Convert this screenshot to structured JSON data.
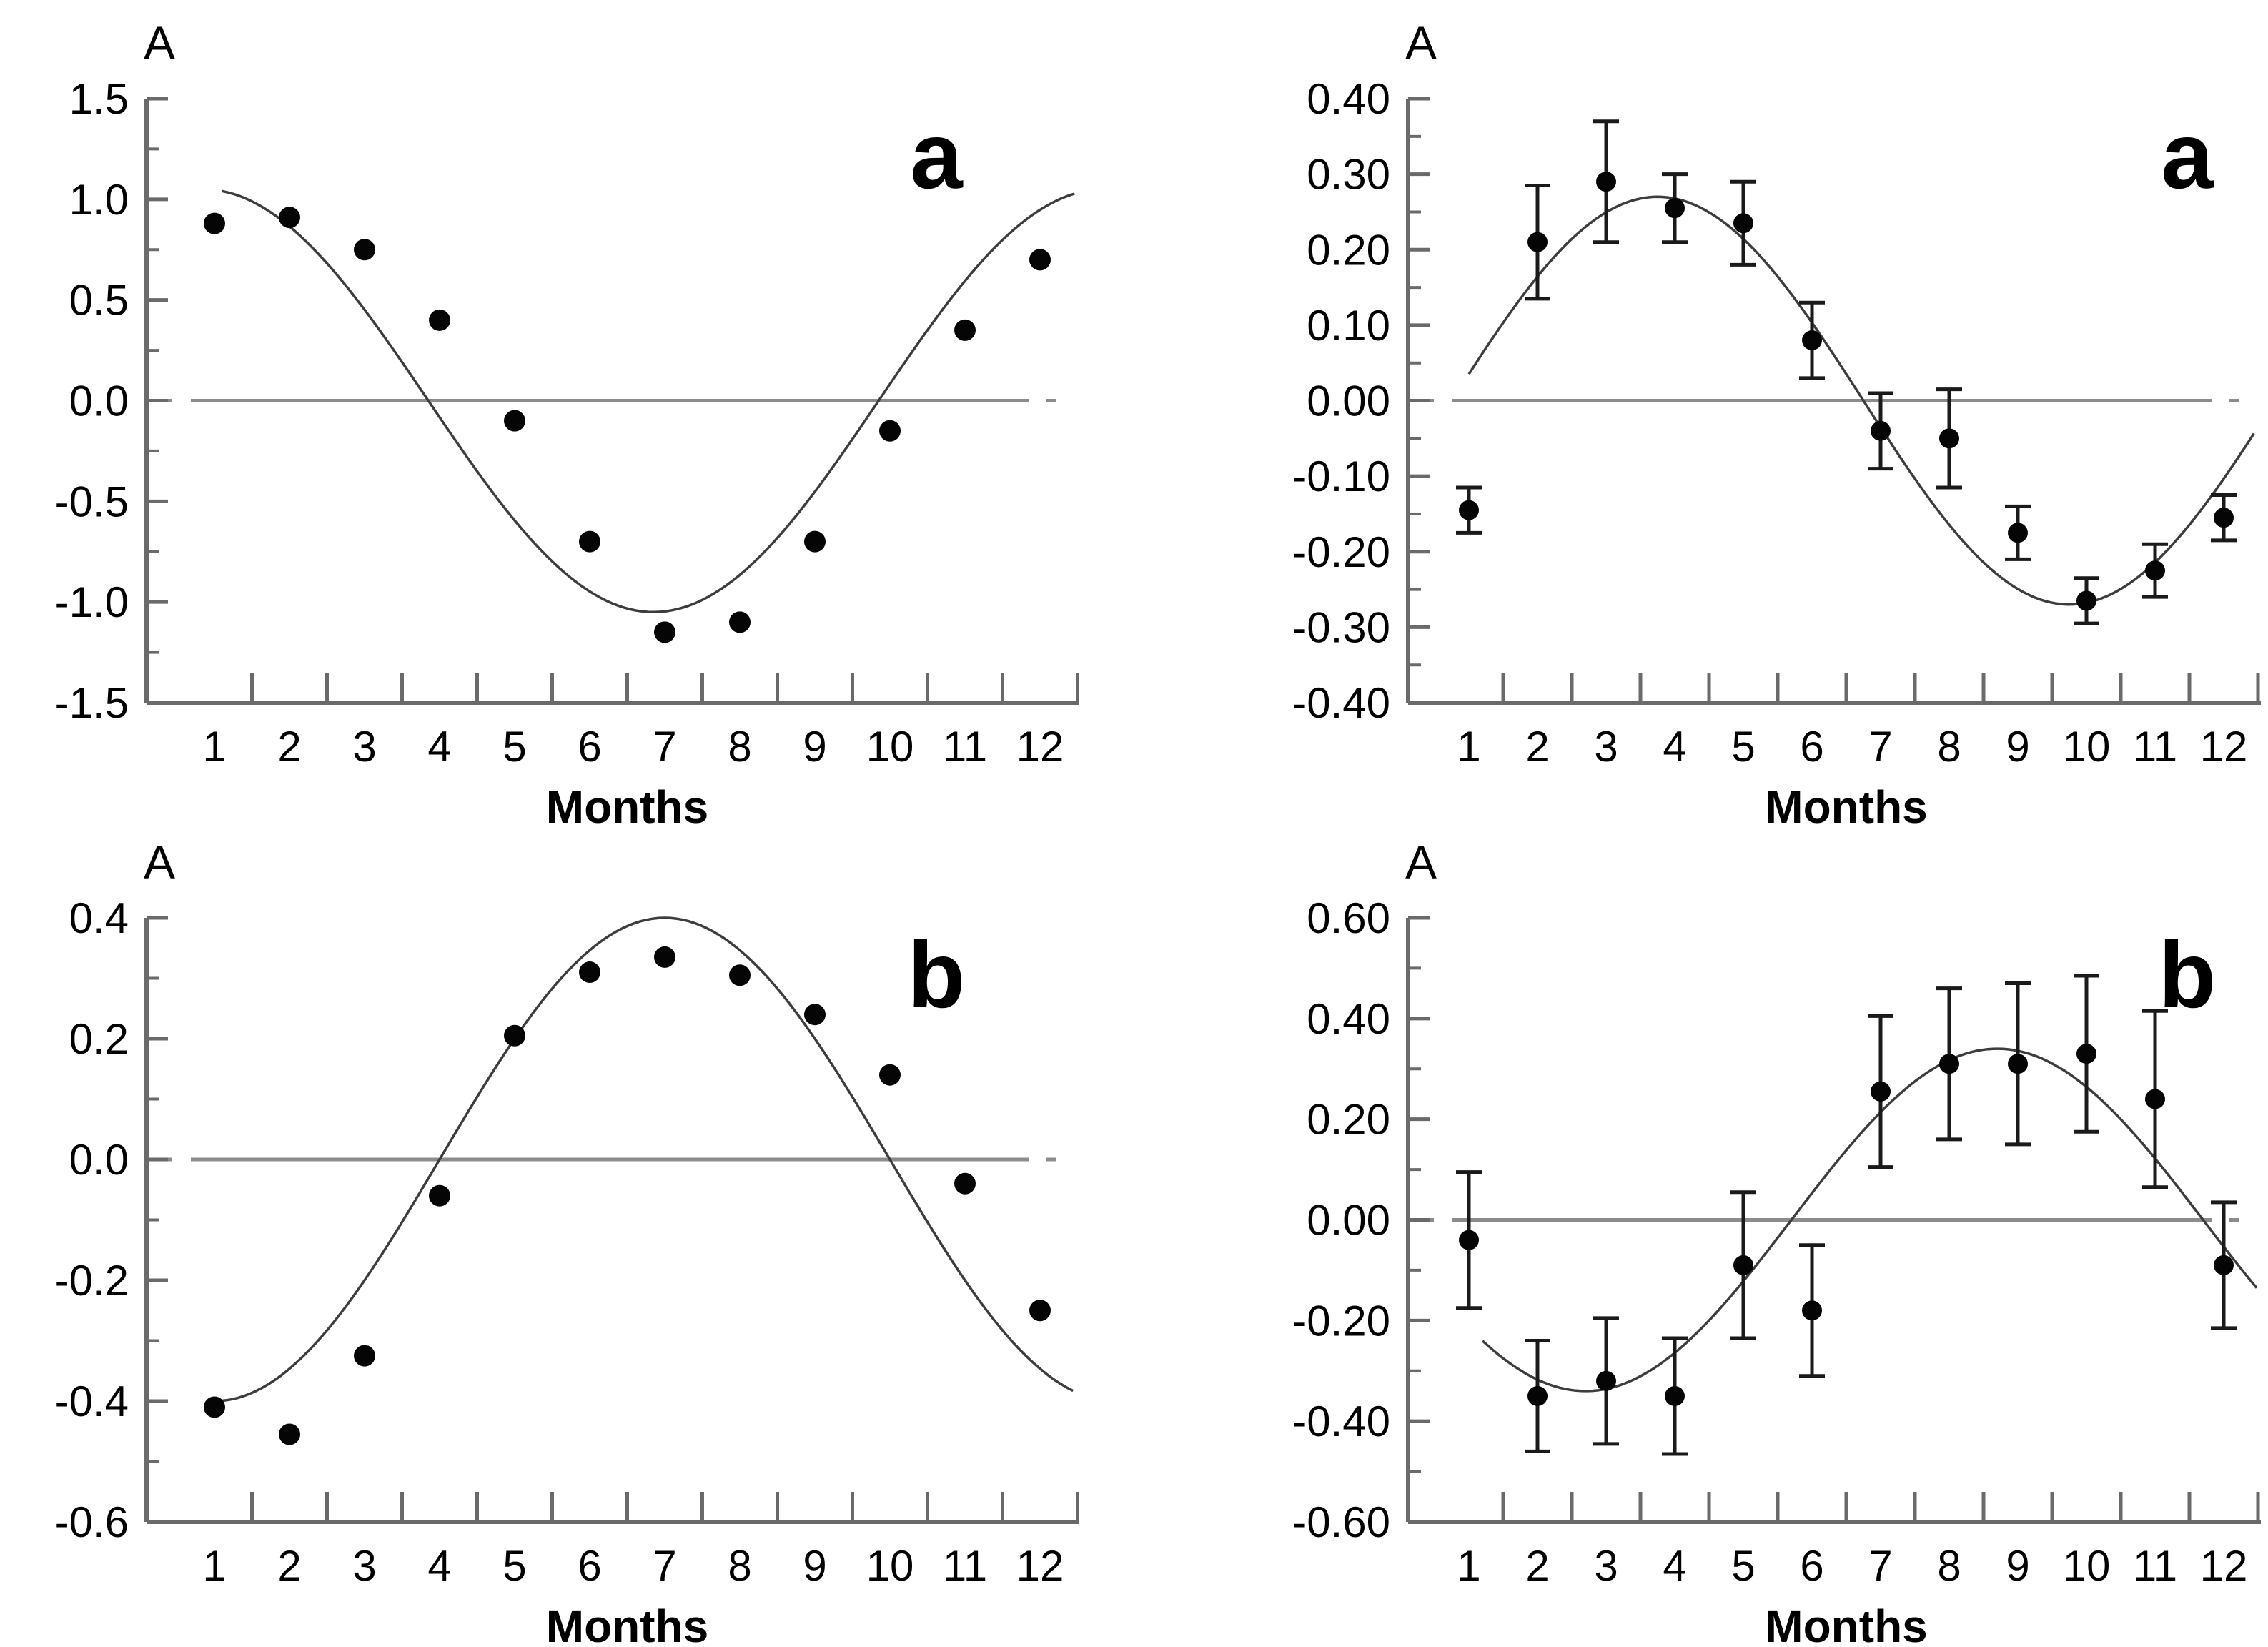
{
  "figure": {
    "background": "#ffffff",
    "colors": {
      "axis": "#6a6a6a",
      "zero_line": "#8c8c8c",
      "curve": "#3d3d3d",
      "point": "#050505",
      "error_bar": "#1a1a1a",
      "text": "#000000"
    }
  },
  "chart_data": [
    {
      "id": "top-left",
      "type": "scatter",
      "panel_label": "a",
      "y_axis_title": "A",
      "x_axis_title": "Months",
      "x_categories": [
        1,
        2,
        3,
        4,
        5,
        6,
        7,
        8,
        9,
        10,
        11,
        12
      ],
      "x_tick_labels": [
        "1",
        "2",
        "3",
        "4",
        "5",
        "6",
        "7",
        "8",
        "9",
        "10",
        "11",
        "12"
      ],
      "values": [
        0.88,
        0.91,
        0.75,
        0.4,
        -0.1,
        -0.7,
        -1.15,
        -1.1,
        -0.7,
        -0.15,
        0.35,
        0.7
      ],
      "errors": null,
      "ylim": [
        -1.5,
        1.5
      ],
      "y_ticks": [
        {
          "v": 1.5,
          "label": "1.5"
        },
        {
          "v": 1.0,
          "label": "1.0"
        },
        {
          "v": 0.5,
          "label": "0.5"
        },
        {
          "v": 0.0,
          "label": "0.0"
        },
        {
          "v": -0.5,
          "label": "-0.5"
        },
        {
          "v": -1.0,
          "label": "-1.0"
        },
        {
          "v": -1.5,
          "label": "-1.5"
        }
      ],
      "zero_line": true,
      "grid": false,
      "fit_curve": {
        "type": "cosine",
        "amplitude": 1.05,
        "peak_month": 0.85,
        "period_months": 12,
        "month_start": 1.1,
        "month_end": 12.5
      }
    },
    {
      "id": "top-right",
      "type": "scatter",
      "panel_label": "a",
      "y_axis_title": "A",
      "x_axis_title": "Months",
      "x_categories": [
        1,
        2,
        3,
        4,
        5,
        6,
        7,
        8,
        9,
        10,
        11,
        12
      ],
      "x_tick_labels": [
        "1",
        "2",
        "3",
        "4",
        "5",
        "6",
        "7",
        "8",
        "9",
        "10",
        "11",
        "12"
      ],
      "values": [
        -0.145,
        0.21,
        0.29,
        0.255,
        0.235,
        0.08,
        -0.04,
        -0.05,
        -0.175,
        -0.265,
        -0.225,
        -0.155
      ],
      "errors": [
        0.03,
        0.075,
        0.08,
        0.045,
        0.055,
        0.05,
        0.05,
        0.065,
        0.035,
        0.03,
        0.035,
        0.03
      ],
      "ylim": [
        -0.4,
        0.4
      ],
      "y_ticks": [
        {
          "v": 0.4,
          "label": "0.40"
        },
        {
          "v": 0.3,
          "label": "0.30"
        },
        {
          "v": 0.2,
          "label": "0.20"
        },
        {
          "v": 0.1,
          "label": "0.10"
        },
        {
          "v": 0.0,
          "label": "0.00"
        },
        {
          "v": -0.1,
          "label": "-0.10"
        },
        {
          "v": -0.2,
          "label": "-0.20"
        },
        {
          "v": -0.3,
          "label": "-0.30"
        },
        {
          "v": -0.4,
          "label": "-0.40"
        }
      ],
      "zero_line": true,
      "grid": false,
      "fit_curve": {
        "type": "cosine",
        "amplitude": 0.27,
        "peak_month": 3.75,
        "period_months": 12,
        "month_start": 1.0,
        "month_end": 12.5
      }
    },
    {
      "id": "bottom-left",
      "type": "scatter",
      "panel_label": "b",
      "y_axis_title": "A",
      "x_axis_title": "Months",
      "x_categories": [
        1,
        2,
        3,
        4,
        5,
        6,
        7,
        8,
        9,
        10,
        11,
        12
      ],
      "x_tick_labels": [
        "1",
        "2",
        "3",
        "4",
        "5",
        "6",
        "7",
        "8",
        "9",
        "10",
        "11",
        "12"
      ],
      "values": [
        -0.41,
        -0.455,
        -0.325,
        -0.06,
        0.205,
        0.31,
        0.335,
        0.305,
        0.24,
        0.14,
        -0.04,
        -0.25
      ],
      "errors": null,
      "ylim": [
        -0.6,
        0.4
      ],
      "y_ticks": [
        {
          "v": 0.4,
          "label": "0.4"
        },
        {
          "v": 0.2,
          "label": "0.2"
        },
        {
          "v": 0.0,
          "label": "0.0"
        },
        {
          "v": -0.2,
          "label": "-0.2"
        },
        {
          "v": -0.4,
          "label": "-0.4"
        },
        {
          "v": -0.6,
          "label": "-0.6"
        }
      ],
      "zero_line": true,
      "grid": false,
      "fit_curve": {
        "type": "cosine",
        "amplitude": 0.4,
        "peak_month": 7.0,
        "period_months": 12,
        "month_start": 1.0,
        "month_end": 12.5
      }
    },
    {
      "id": "bottom-right",
      "type": "scatter",
      "panel_label": "b",
      "y_axis_title": "A",
      "x_axis_title": "Months",
      "x_categories": [
        1,
        2,
        3,
        4,
        5,
        6,
        7,
        8,
        9,
        10,
        11,
        12
      ],
      "x_tick_labels": [
        "1",
        "2",
        "3",
        "4",
        "5",
        "6",
        "7",
        "8",
        "9",
        "10",
        "11",
        "12"
      ],
      "values": [
        -0.04,
        -0.35,
        -0.32,
        -0.35,
        -0.09,
        -0.18,
        0.255,
        0.31,
        0.31,
        0.33,
        0.24,
        -0.09
      ],
      "errors": [
        0.135,
        0.11,
        0.125,
        0.115,
        0.145,
        0.13,
        0.15,
        0.15,
        0.16,
        0.155,
        0.175,
        0.125
      ],
      "ylim": [
        -0.6,
        0.6
      ],
      "y_ticks": [
        {
          "v": 0.6,
          "label": "0.60"
        },
        {
          "v": 0.4,
          "label": "0.40"
        },
        {
          "v": 0.2,
          "label": "0.20"
        },
        {
          "v": 0.0,
          "label": "0.00"
        },
        {
          "v": -0.2,
          "label": "-0.20"
        },
        {
          "v": -0.4,
          "label": "-0.40"
        },
        {
          "v": -0.6,
          "label": "-0.60"
        }
      ],
      "zero_line": true,
      "grid": false,
      "fit_curve": {
        "type": "cosine",
        "amplitude": 0.34,
        "peak_month": 8.7,
        "period_months": 12,
        "month_start": 1.2,
        "month_end": 12.5
      }
    }
  ]
}
